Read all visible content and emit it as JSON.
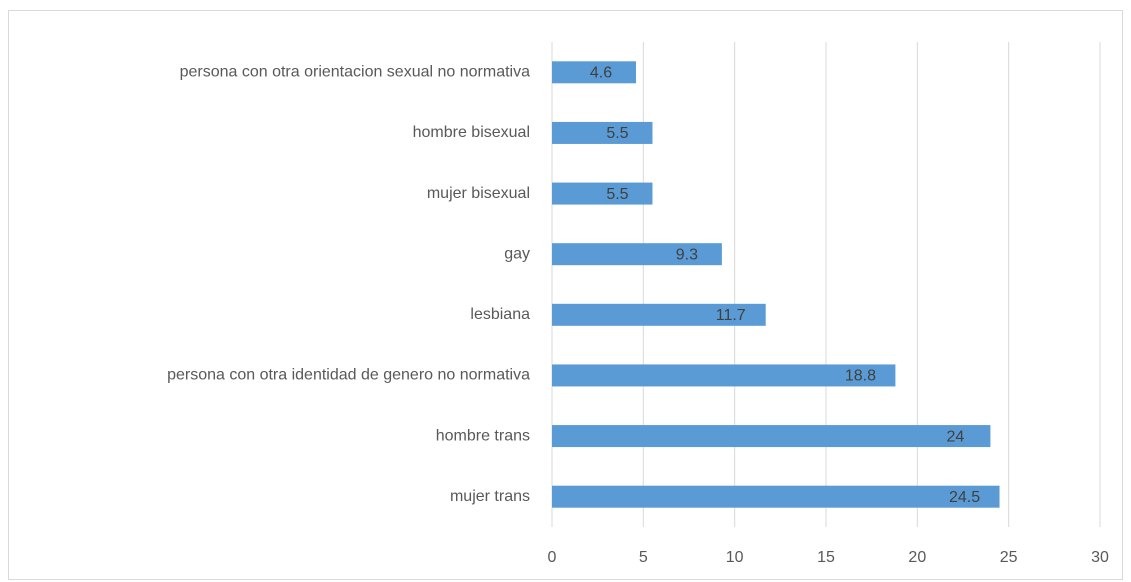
{
  "chart_data": {
    "type": "bar",
    "orientation": "horizontal",
    "categories": [
      "persona con otra orientacion sexual no normativa",
      "hombre bisexual",
      "mujer bisexual",
      "gay",
      "lesbiana",
      "persona con otra identidad de genero no normativa",
      "hombre trans",
      "mujer trans"
    ],
    "values": [
      4.6,
      5.5,
      5.5,
      9.3,
      11.7,
      18.8,
      24,
      24.5
    ],
    "color": "#5b9bd5",
    "xlim": [
      0,
      30
    ],
    "xticks": [
      0,
      5,
      10,
      15,
      20,
      25,
      30
    ],
    "grid": true
  }
}
